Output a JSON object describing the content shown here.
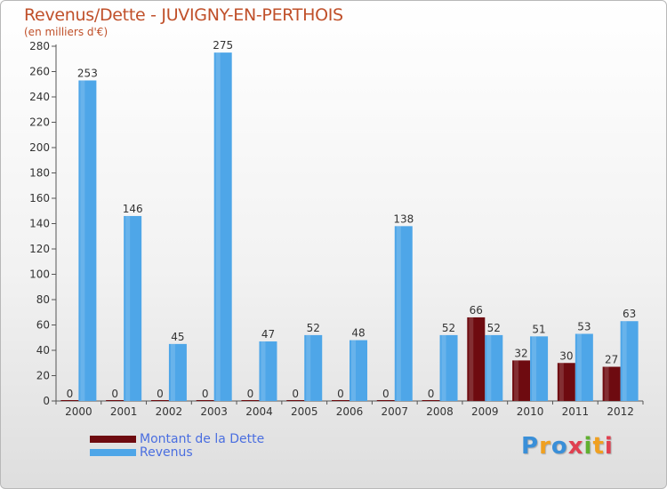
{
  "chart_data": {
    "type": "bar",
    "title": "Revenus/Dette - JUVIGNY-EN-PERTHOIS",
    "subtitle": "(en milliers d'€)",
    "categories": [
      "2000",
      "2001",
      "2002",
      "2003",
      "2004",
      "2005",
      "2006",
      "2007",
      "2008",
      "2009",
      "2010",
      "2011",
      "2012"
    ],
    "series": [
      {
        "name": "Montant de la Dette",
        "color": "#6e0b10",
        "values": [
          0,
          0,
          0,
          0,
          0,
          0,
          0,
          0,
          0,
          66,
          32,
          30,
          27
        ]
      },
      {
        "name": "Revenus",
        "color": "#4ea6e8",
        "values": [
          253,
          146,
          45,
          275,
          47,
          52,
          48,
          138,
          52,
          52,
          51,
          53,
          63
        ]
      }
    ],
    "ylim": [
      0,
      280
    ],
    "yticks": [
      0,
      20,
      40,
      60,
      80,
      100,
      120,
      140,
      160,
      180,
      200,
      220,
      240,
      260,
      280
    ],
    "grid": false,
    "legend": "bottom-left"
  },
  "logo": {
    "text": "Proxiti"
  }
}
